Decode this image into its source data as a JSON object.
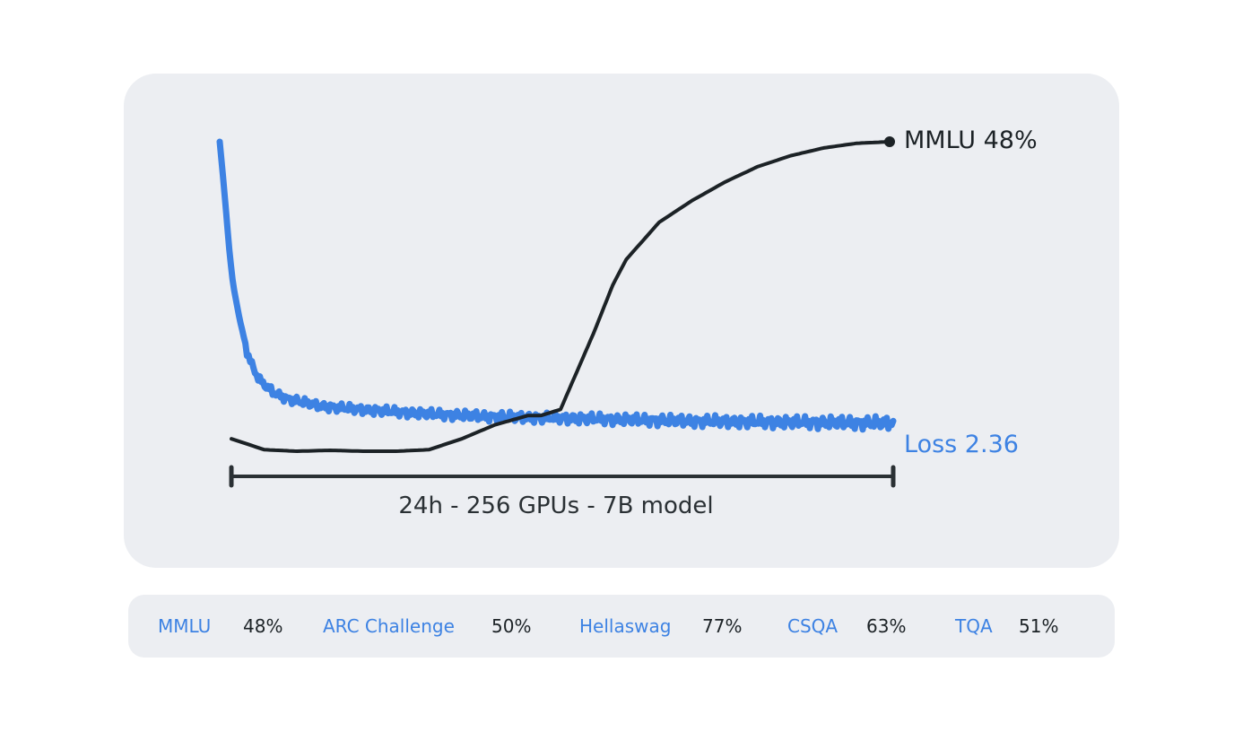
{
  "chart_data": {
    "type": "line",
    "title": "",
    "xlabel": "",
    "ylabel": "",
    "span_label": "24h - 256 GPUs - 7B model",
    "colors": {
      "loss": "#3d82e3",
      "mmlu": "#1c2226",
      "panel": "#eceef2"
    },
    "series": [
      {
        "name": "Loss",
        "end_label": "Loss 2.36",
        "color": "#3d82e3",
        "x": [
          0,
          0.5,
          1,
          1.5,
          2,
          3,
          4,
          5,
          6,
          8,
          10,
          15,
          20,
          30,
          40,
          50,
          60,
          70,
          80,
          90,
          100
        ],
        "y": [
          100,
          88,
          75,
          62,
          52,
          40,
          30,
          24,
          20,
          16,
          14,
          11.5,
          10.5,
          9,
          8,
          7.5,
          7,
          6.5,
          6.2,
          6,
          5.8
        ]
      },
      {
        "name": "MMLU",
        "end_label": "MMLU 48%",
        "color": "#1c2226",
        "x": [
          0,
          5,
          10,
          15,
          20,
          25,
          30,
          35,
          40,
          45,
          47,
          50,
          55,
          58,
          60,
          65,
          70,
          75,
          80,
          85,
          90,
          95,
          100
        ],
        "y": [
          4,
          0.5,
          0,
          0.3,
          0,
          0,
          0.5,
          4,
          8.5,
          11.5,
          11.5,
          13.5,
          38,
          54,
          62,
          74,
          81,
          87,
          92,
          95.5,
          98,
          99.5,
          100
        ]
      }
    ]
  },
  "metrics": [
    {
      "name": "MMLU",
      "value": "48%"
    },
    {
      "name": "ARC Challenge",
      "value": "50%"
    },
    {
      "name": "Hellaswag",
      "value": "77%"
    },
    {
      "name": "CSQA",
      "value": "63%"
    },
    {
      "name": "TQA",
      "value": "51%"
    }
  ]
}
